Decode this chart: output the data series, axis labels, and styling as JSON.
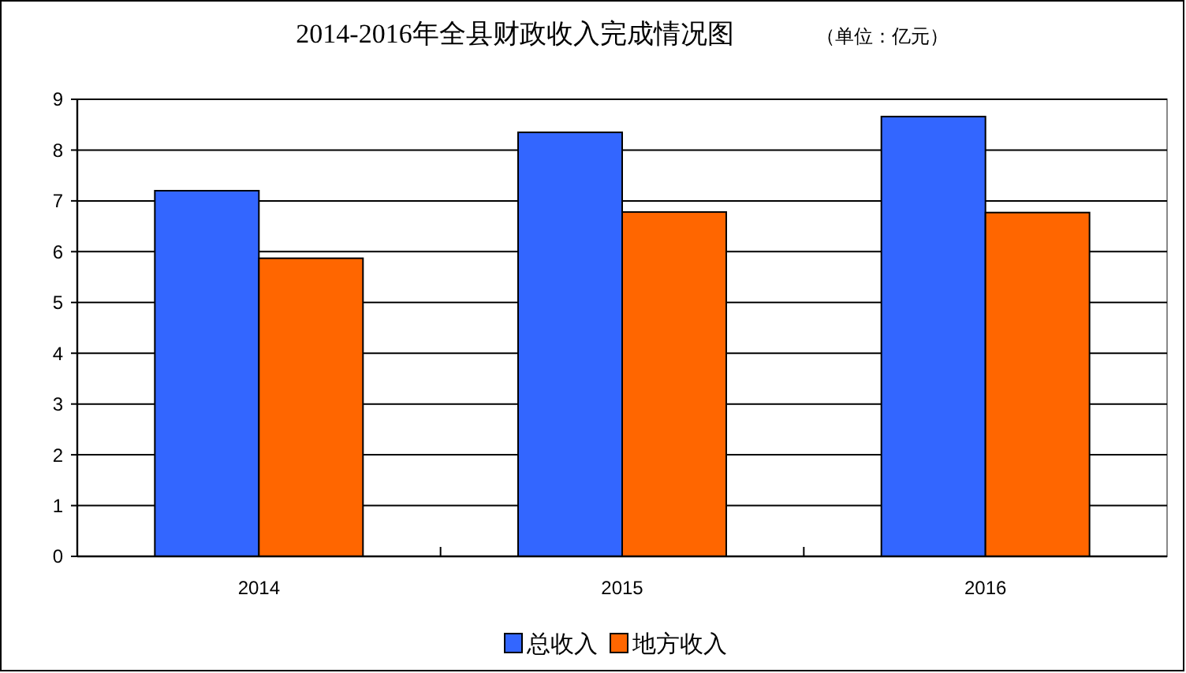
{
  "chart_data": {
    "type": "bar",
    "title": "2014-2016年全县财政收入完成情况图",
    "subtitle": "（单位：亿元）",
    "categories": [
      "2014",
      "2015",
      "2016"
    ],
    "series": [
      {
        "name": "总收入",
        "color": "#3366ff",
        "values": [
          7.2,
          8.35,
          8.66
        ]
      },
      {
        "name": "地方收入",
        "color": "#ff6600",
        "values": [
          5.87,
          6.78,
          6.77
        ]
      }
    ],
    "ylim": [
      0,
      9
    ],
    "yticks": [
      0,
      1,
      2,
      3,
      4,
      5,
      6,
      7,
      8,
      9
    ],
    "grid": "y",
    "legend": "bottom"
  }
}
